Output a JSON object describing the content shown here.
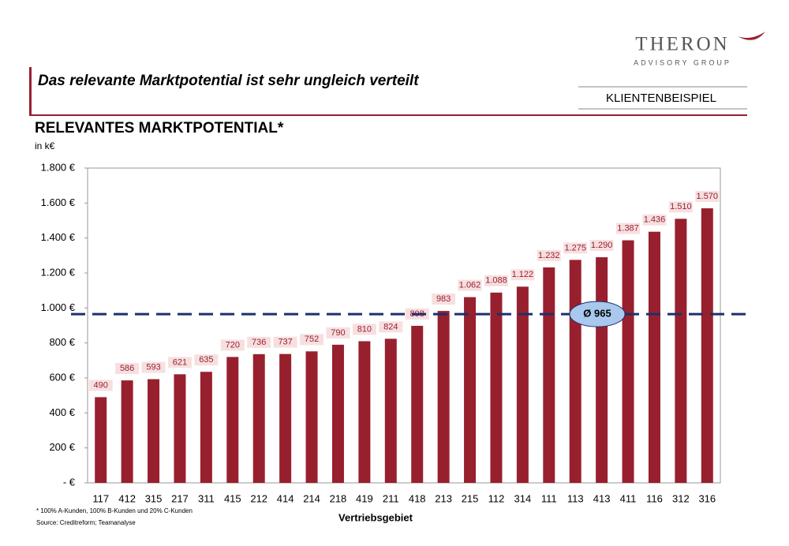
{
  "slide": {
    "title": "Das relevante Marktpotential ist sehr ungleich verteilt",
    "logo": "THERON",
    "logo_sub": "ADVISORY GROUP",
    "tag": "KLIENTENBEISPIEL",
    "footnote": "* 100% A-Kunden, 100% B-Kunden und 20% C-Kunden",
    "source": "Source: Creditreform; Teamanalyse"
  },
  "chart_data": {
    "type": "bar",
    "title": "RELEVANTES MARKTPOTENTIAL*",
    "unit": "in k€",
    "x_label": "Vertriebsgebiet",
    "categories": [
      "117",
      "412",
      "315",
      "217",
      "311",
      "415",
      "212",
      "414",
      "214",
      "218",
      "419",
      "211",
      "418",
      "213",
      "215",
      "112",
      "314",
      "111",
      "113",
      "413",
      "411",
      "116",
      "312",
      "316"
    ],
    "values": [
      490,
      586,
      593,
      621,
      635,
      720,
      736,
      737,
      752,
      790,
      810,
      824,
      898,
      983,
      1062,
      1088,
      1122,
      1232,
      1275,
      1290,
      1387,
      1436,
      1510,
      1570
    ],
    "value_labels": [
      "490",
      "586",
      "593",
      "621",
      "635",
      "720",
      "736",
      "737",
      "752",
      "790",
      "810",
      "824",
      "898",
      "983",
      "1.062",
      "1.088",
      "1.122",
      "1.232",
      "1.275",
      "1.290",
      "1.387",
      "1.436",
      "1.510",
      "1.570"
    ],
    "color": "#98202e",
    "ylim": [
      0,
      1800
    ],
    "yticks": [
      {
        "value": 0,
        "label": "-  €"
      },
      {
        "value": 200,
        "label": "200 €"
      },
      {
        "value": 400,
        "label": "400 €"
      },
      {
        "value": 600,
        "label": "600 €"
      },
      {
        "value": 800,
        "label": "800 €"
      },
      {
        "value": 1000,
        "label": "1.000 €"
      },
      {
        "value": 1200,
        "label": "1.200 €"
      },
      {
        "value": 1400,
        "label": "1.400 €"
      },
      {
        "value": 1600,
        "label": "1.600 €"
      },
      {
        "value": 1800,
        "label": "1.800 €"
      }
    ],
    "average": {
      "value": 965,
      "label": "Ø 965"
    },
    "average_color": "#1f2f6b"
  }
}
